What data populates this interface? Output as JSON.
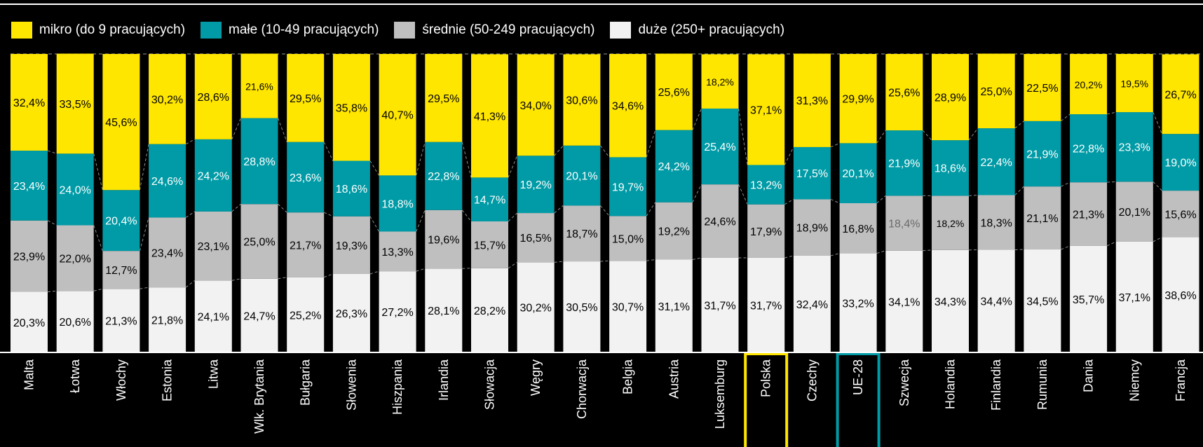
{
  "colors": {
    "micro": "#FFE600",
    "small": "#009BA6",
    "medium": "#BFBFBF",
    "large": "#F2F2F2",
    "highlight_poland": "#FFE600",
    "highlight_eu": "#009BA6"
  },
  "legend": {
    "items": [
      {
        "label": "mikro (do 9 pracujących)"
      },
      {
        "label": "małe (10-49 pracujących)"
      },
      {
        "label": "średnie (50-249 pracujących)"
      },
      {
        "label": "duże (250+ pracujących)"
      }
    ]
  },
  "chart_data": {
    "type": "bar",
    "stacked": true,
    "percent": true,
    "ylim": [
      0,
      100
    ],
    "categories": [
      "Malta",
      "Łotwa",
      "Włochy",
      "Estonia",
      "Litwa",
      "Wlk. Brytania",
      "Bułgaria",
      "Słowenia",
      "Hiszpania",
      "Irlandia",
      "Słowacja",
      "Węgry",
      "Chorwacja",
      "Belgia",
      "Austria",
      "Luksemburg",
      "Polska",
      "Czechy",
      "UE-28",
      "Szwecja",
      "Holandia",
      "Finlandia",
      "Rumunia",
      "Dania",
      "Niemcy",
      "Francja"
    ],
    "highlighted": [
      "Polska",
      "UE-28"
    ],
    "series": [
      {
        "name": "duże (250+ pracujących)",
        "values": [
          20.3,
          20.6,
          21.3,
          21.8,
          24.1,
          24.7,
          25.2,
          26.3,
          27.2,
          28.1,
          28.2,
          30.2,
          30.5,
          30.7,
          31.1,
          31.7,
          31.7,
          32.4,
          33.2,
          34.1,
          34.3,
          34.4,
          34.5,
          35.7,
          37.1,
          38.6
        ],
        "labels": [
          "20,3%",
          "20,6%",
          "21,3%",
          "21,8%",
          "24,1%",
          "24,7%",
          "25,2%",
          "26,3%",
          "27,2%",
          "28,1%",
          "28,2%",
          "30,2%",
          "30,5%",
          "30,7%",
          "31,1%",
          "31,7%",
          "31,7%",
          "32,4%",
          "33,2%",
          "34,1%",
          "34,3%",
          "34,4%",
          "34,5%",
          "35,7%",
          "37,1%",
          "38,6%"
        ]
      },
      {
        "name": "średnie (50-249 pracujących)",
        "values": [
          23.9,
          22.0,
          12.7,
          23.4,
          23.1,
          25.0,
          21.7,
          19.3,
          13.3,
          19.6,
          15.7,
          16.5,
          18.7,
          15.0,
          19.2,
          24.6,
          17.9,
          18.9,
          16.8,
          18.4,
          18.2,
          18.3,
          21.1,
          21.3,
          20.1,
          15.6
        ],
        "labels": [
          "23,9%",
          "22,0%",
          "12,7%",
          "23,4%",
          "23,1%",
          "25,0%",
          "21,7%",
          "19,3%",
          "13,3%",
          "19,6%",
          "15,7%",
          "16,5%",
          "18,7%",
          "15,0%",
          "19,2%",
          "24,6%",
          "17,9%",
          "18,9%",
          "16,8%",
          "18,4%",
          "18,2%",
          "18,3%",
          "21,1%",
          "21,3%",
          "20,1%",
          "15,6%"
        ]
      },
      {
        "name": "małe (10-49 pracujących)",
        "values": [
          23.4,
          24.0,
          20.4,
          24.6,
          24.2,
          28.8,
          23.6,
          18.6,
          18.8,
          22.8,
          14.7,
          19.2,
          20.1,
          19.7,
          24.2,
          25.4,
          13.2,
          17.5,
          20.1,
          21.9,
          18.6,
          22.4,
          21.9,
          22.8,
          23.3,
          19.0
        ],
        "labels": [
          "23,4%",
          "24,0%",
          "20,4%",
          "24,6%",
          "24,2%",
          "28,8%",
          "23,6%",
          "18,6%",
          "18,8%",
          "22,8%",
          "14,7%",
          "19,2%",
          "20,1%",
          "19,7%",
          "24,2%",
          "25,4%",
          "13,2%",
          "17,5%",
          "20,1%",
          "21,9%",
          "18,6%",
          "22,4%",
          "21,9%",
          "22,8%",
          "23,3%",
          "19,0%"
        ]
      },
      {
        "name": "mikro (do 9 pracujących)",
        "values": [
          32.4,
          33.5,
          45.6,
          30.2,
          28.6,
          21.6,
          29.5,
          35.8,
          40.7,
          29.5,
          41.3,
          34.0,
          30.6,
          34.6,
          25.6,
          18.2,
          37.1,
          31.3,
          29.9,
          25.6,
          28.9,
          25.0,
          22.5,
          20.2,
          19.5,
          26.7
        ],
        "labels": [
          "32,4%",
          "33,5%",
          "45,6%",
          "30,2%",
          "28,6%",
          "21,6%",
          "29,5%",
          "35,8%",
          "40,7%",
          "29,5%",
          "41,3%",
          "34,0%",
          "30,6%",
          "34,6%",
          "25,6%",
          "18,2%",
          "37,1%",
          "31,3%",
          "29,9%",
          "25,6%",
          "28,9%",
          "25,0%",
          "22,5%",
          "20,2%",
          "19,5%",
          "26,7%"
        ]
      }
    ]
  }
}
